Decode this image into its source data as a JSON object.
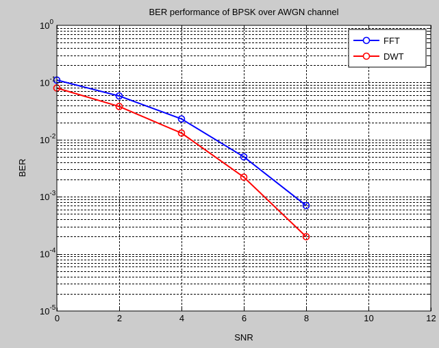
{
  "chart_data": {
    "type": "line",
    "title": "BER performance of BPSK over AWGN channel",
    "xlabel": "SNR",
    "ylabel": "BER",
    "xlim": [
      0,
      12
    ],
    "ylim": [
      1e-05,
      1
    ],
    "yscale": "log",
    "x_ticks": [
      "0",
      "2",
      "4",
      "6",
      "8",
      "10",
      "12"
    ],
    "y_ticks": [
      {
        "base": "10",
        "exp": "0"
      },
      {
        "base": "10",
        "exp": "-1"
      },
      {
        "base": "10",
        "exp": "-2"
      },
      {
        "base": "10",
        "exp": "-3"
      },
      {
        "base": "10",
        "exp": "-4"
      },
      {
        "base": "10",
        "exp": "-5"
      }
    ],
    "grid": true,
    "legend_position": "top-right",
    "x": [
      0,
      2,
      4,
      6,
      8
    ],
    "series": [
      {
        "name": "FFT",
        "color": "#0000ff",
        "marker": "circle",
        "values": [
          0.11,
          0.058,
          0.023,
          0.005,
          0.0007
        ]
      },
      {
        "name": "DWT",
        "color": "#ff0000",
        "marker": "circle",
        "values": [
          0.08,
          0.038,
          0.013,
          0.0022,
          0.0002
        ]
      }
    ]
  },
  "colors": {
    "figure_background": "#cccccc",
    "plot_background": "#ffffff",
    "axis": "#000000"
  }
}
